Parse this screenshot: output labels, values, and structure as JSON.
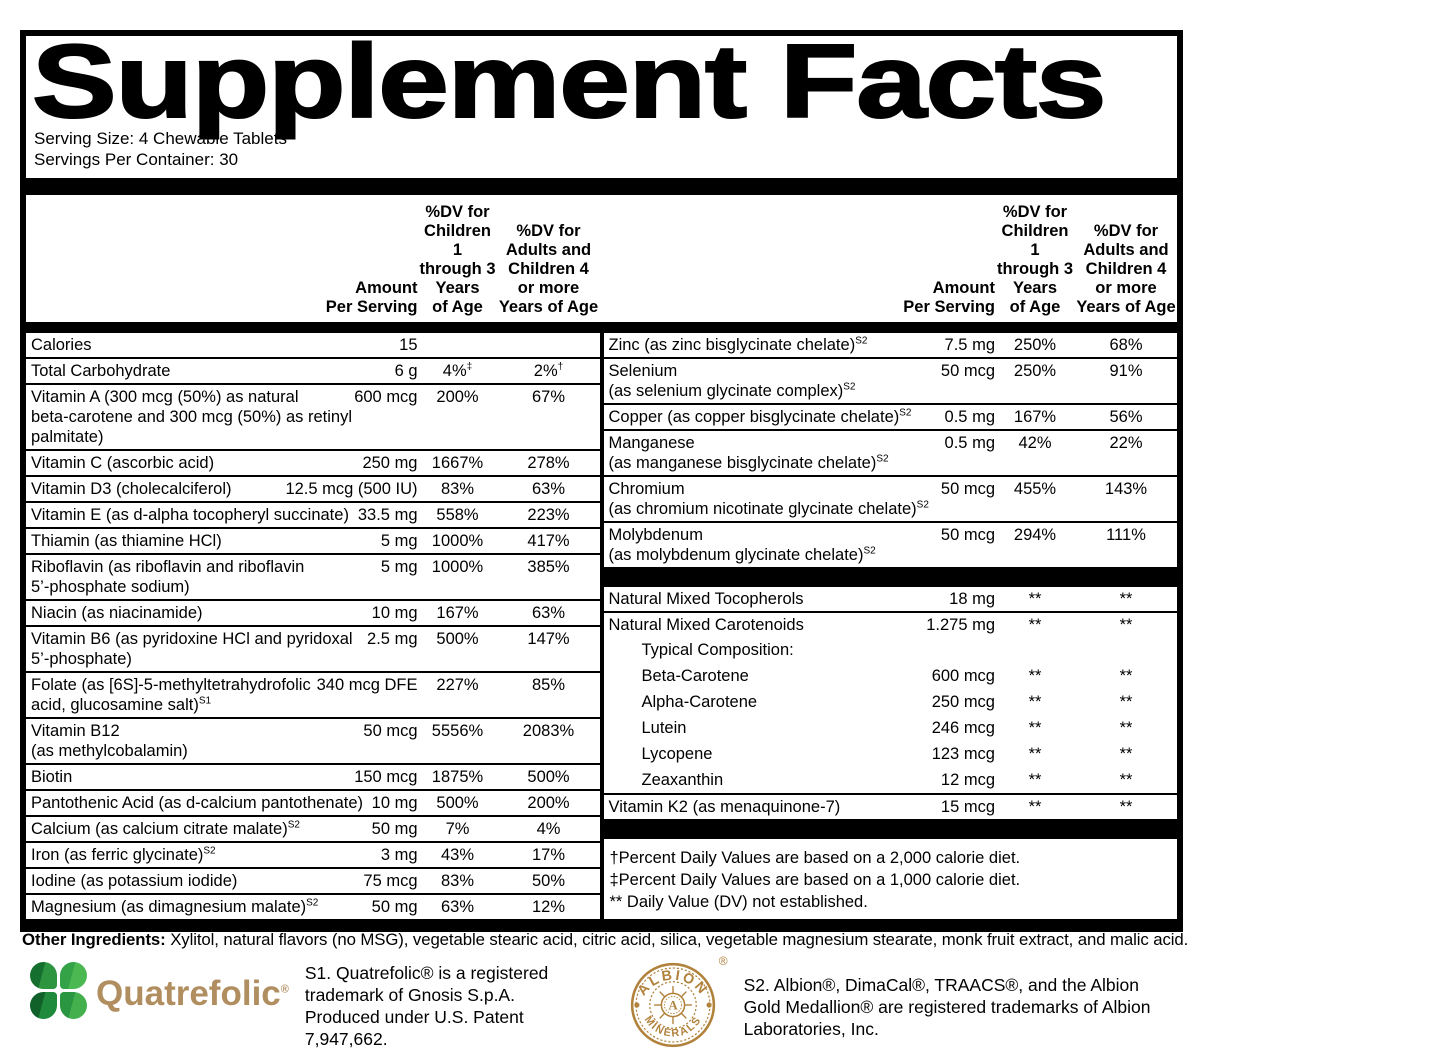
{
  "title": "Supplement Facts",
  "serving_size": "Serving Size: 4 Chewable Tablets",
  "servings_per_container": "Servings Per Container: 30",
  "columns": {
    "amount": "Amount\nPer Serving",
    "dv_children": "%DV for\nChildren 1\nthrough 3\nYears\nof Age",
    "dv_adults": "%DV for\nAdults and\nChildren 4\nor more\nYears of Age"
  },
  "left_rows": [
    {
      "name": "Calories",
      "amount": "15",
      "dv_children": "",
      "dv_adults": "",
      "sep": true
    },
    {
      "name": "Total Carbohydrate",
      "amount": "6 g",
      "dv_children": "4%‡",
      "dv_adults": "2%†",
      "sep": true
    },
    {
      "name": "Vitamin A (300 mcg (50%) as natural\nbeta-carotene and 300 mcg (50%) as retinyl\npalmitate)",
      "amount": "600 mcg",
      "dv_children": "200%",
      "dv_adults": "67%",
      "sep": true
    },
    {
      "name": "Vitamin C (ascorbic acid)",
      "amount": "250 mg",
      "dv_children": "1667%",
      "dv_adults": "278%",
      "sep": true
    },
    {
      "name": "Vitamin D3 (cholecalciferol)",
      "amount": "12.5 mcg (500 IU)",
      "dv_children": "83%",
      "dv_adults": "63%",
      "sep": true
    },
    {
      "name": "Vitamin E (as d-alpha tocopheryl succinate)",
      "amount": "33.5 mg",
      "dv_children": "558%",
      "dv_adults": "223%",
      "sep": true
    },
    {
      "name": "Thiamin (as thiamine HCl)",
      "amount": "5 mg",
      "dv_children": "1000%",
      "dv_adults": "417%",
      "sep": true
    },
    {
      "name": "Riboflavin (as riboflavin and riboflavin\n5’-phosphate sodium)",
      "amount": "5 mg",
      "dv_children": "1000%",
      "dv_adults": "385%",
      "sep": true
    },
    {
      "name": "Niacin (as niacinamide)",
      "amount": "10 mg",
      "dv_children": "167%",
      "dv_adults": "63%",
      "sep": true
    },
    {
      "name": "Vitamin B6 (as pyridoxine HCl and pyridoxal\n5’-phosphate)",
      "amount": "2.5 mg",
      "dv_children": "500%",
      "dv_adults": "147%",
      "sep": true
    },
    {
      "name": "Folate (as [6S]-5-methyltetrahydrofolic\nacid, glucosamine salt)",
      "sup": "S1",
      "amount": "340 mcg DFE",
      "dv_children": "227%",
      "dv_adults": "85%",
      "sep": true
    },
    {
      "name": "Vitamin B12\n(as methylcobalamin)",
      "amount": "50 mcg",
      "dv_children": "5556%",
      "dv_adults": "2083%",
      "sep": true
    },
    {
      "name": "Biotin",
      "amount": "150 mcg",
      "dv_children": "1875%",
      "dv_adults": "500%",
      "sep": true
    },
    {
      "name": "Pantothenic Acid (as d-calcium pantothenate)",
      "amount": "10 mg",
      "dv_children": "500%",
      "dv_adults": "200%",
      "sep": true
    },
    {
      "name": "Calcium (as calcium citrate malate)",
      "sup": "S2",
      "amount": "50 mg",
      "dv_children": "7%",
      "dv_adults": "4%",
      "sep": true
    },
    {
      "name": "Iron (as ferric glycinate)",
      "sup": "S2",
      "amount": "3 mg",
      "dv_children": "43%",
      "dv_adults": "17%",
      "sep": true
    },
    {
      "name": "Iodine (as potassium iodide)",
      "amount": "75 mcg",
      "dv_children": "83%",
      "dv_adults": "50%",
      "sep": true
    },
    {
      "name": "Magnesium (as dimagnesium malate)",
      "sup": "S2",
      "amount": "50 mg",
      "dv_children": "63%",
      "dv_adults": "12%",
      "sep": false
    }
  ],
  "right_rows": [
    {
      "type": "row",
      "name": "Zinc (as zinc bisglycinate chelate)",
      "sup": "S2",
      "amount": "7.5 mg",
      "dv_children": "250%",
      "dv_adults": "68%",
      "sep": true
    },
    {
      "type": "row",
      "name": "Selenium\n(as selenium glycinate complex)",
      "sup": "S2",
      "amount": "50 mcg",
      "dv_children": "250%",
      "dv_adults": "91%",
      "sep": true
    },
    {
      "type": "row",
      "name": "Copper (as copper bisglycinate chelate)",
      "sup": "S2",
      "amount": "0.5 mg",
      "dv_children": "167%",
      "dv_adults": "56%",
      "sep": true
    },
    {
      "type": "row",
      "name": "Manganese\n(as manganese bisglycinate chelate)",
      "sup": "S2",
      "amount": "0.5 mg",
      "dv_children": "42%",
      "dv_adults": "22%",
      "sep": true
    },
    {
      "type": "row",
      "name": "Chromium\n(as chromium nicotinate glycinate chelate)",
      "sup": "S2",
      "amount": "50 mcg",
      "dv_children": "455%",
      "dv_adults": "143%",
      "sep": true
    },
    {
      "type": "row",
      "name": "Molybdenum\n(as molybdenum glycinate chelate)",
      "sup": "S2",
      "amount": "50 mcg",
      "dv_children": "294%",
      "dv_adults": "111%",
      "sep": false
    },
    {
      "type": "bar"
    },
    {
      "type": "row",
      "name": "Natural Mixed Tocopherols",
      "amount": "18 mg",
      "dv_children": "**",
      "dv_adults": "**",
      "sep": true
    },
    {
      "type": "row",
      "name": "Natural Mixed Carotenoids",
      "amount": "1.275 mg",
      "dv_children": "**",
      "dv_adults": "**",
      "sep": false
    },
    {
      "type": "subrow",
      "name": "Typical Composition:",
      "amount": "",
      "dv_children": "",
      "dv_adults": "",
      "sep": false
    },
    {
      "type": "subrow",
      "name": "Beta-Carotene",
      "amount": "600 mcg",
      "dv_children": "**",
      "dv_adults": "**",
      "sep": false
    },
    {
      "type": "subrow",
      "name": "Alpha-Carotene",
      "amount": "250 mcg",
      "dv_children": "**",
      "dv_adults": "**",
      "sep": false
    },
    {
      "type": "subrow",
      "name": "Lutein",
      "amount": "246 mcg",
      "dv_children": "**",
      "dv_adults": "**",
      "sep": false
    },
    {
      "type": "subrow",
      "name": "Lycopene",
      "amount": "123 mcg",
      "dv_children": "**",
      "dv_adults": "**",
      "sep": false
    },
    {
      "type": "subrow",
      "name": "Zeaxanthin",
      "amount": "12 mcg",
      "dv_children": "**",
      "dv_adults": "**",
      "sep": true
    },
    {
      "type": "row",
      "name": "Vitamin K2 (as menaquinone-7)",
      "amount": "15 mcg",
      "dv_children": "**",
      "dv_adults": "**",
      "sep": false
    },
    {
      "type": "bar"
    },
    {
      "type": "notes"
    }
  ],
  "footnotes": [
    "†Percent Daily Values are based on a 2,000 calorie diet.",
    "‡Percent Daily Values are based on a 1,000 calorie diet.",
    "** Daily Value (DV) not established."
  ],
  "other_ingredients": {
    "label": "Other Ingredients:",
    "text": " Xylitol, natural flavors (no MSG), vegetable stearic acid, citric acid, silica, vegetable magnesium stearate, monk fruit extract, and malic acid."
  },
  "footer": {
    "quatrefolic_wordmark": "Quatrefolic",
    "registered_symbol": "®",
    "s1_note": "S1. Quatrefolic® is a registered trademark of Gnosis S.p.A. Produced under U.S. Patent 7,947,662.",
    "albion_top": "ALBION",
    "albion_bottom": "MINERALS",
    "albion_center": "A",
    "s2_note": "S2. Albion®, DimaCal®, TRAACS®, and the Albion Gold Medallion® are registered trademarks of Albion Laboratories, Inc."
  },
  "colors": {
    "quatrefolic_tan": "#b18e5f",
    "clover_dark": "#15702f",
    "clover_mid": "#3fae49",
    "albion_gold": "#b1823c"
  }
}
